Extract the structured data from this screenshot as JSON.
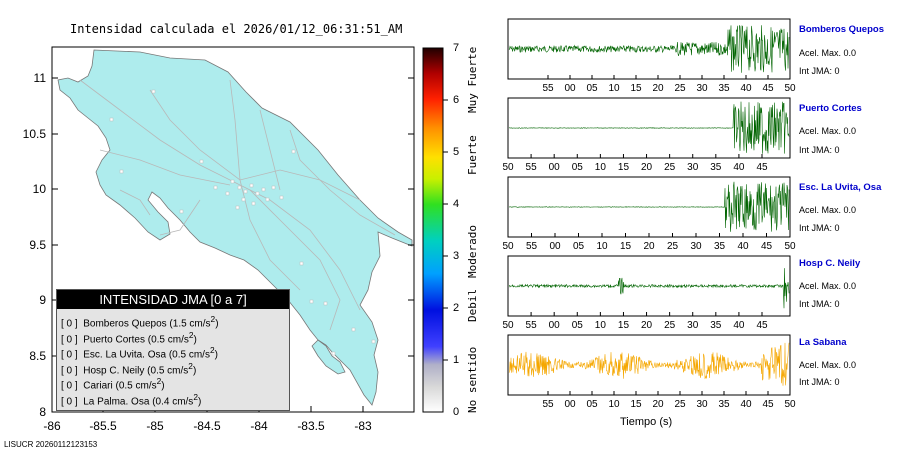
{
  "title": "Intensidad calculada el 2026/01/12_06:31:51_AM",
  "map": {
    "y_ticks": [
      "11",
      "10.5",
      "10",
      "9.5",
      "9",
      "8.5",
      "8"
    ],
    "x_ticks": [
      "-86",
      "-85.5",
      "-85",
      "-84.5",
      "-84",
      "-83.5",
      "-83"
    ]
  },
  "legend": {
    "header": "INTENSIDAD JMA [0 a 7]",
    "rows": [
      {
        "int": "[ 0 ]",
        "name": "Bomberos Quepos",
        "val": "(1.5 cm/s",
        "sup": "2",
        "end": ")"
      },
      {
        "int": "[ 0 ]",
        "name": "Puerto Cortes",
        "val": "(0.5 cm/s",
        "sup": "2",
        "end": ")"
      },
      {
        "int": "[ 0 ]",
        "name": "Esc. La Uvita. Osa",
        "val": "(0.5 cm/s",
        "sup": "2",
        "end": ")"
      },
      {
        "int": "[ 0 ]",
        "name": "Hosp C. Neily",
        "val": "(0.5 cm/s",
        "sup": "2",
        "end": ")"
      },
      {
        "int": "[ 0 ]",
        "name": "Cariari",
        "val": "(0.5 cm/s",
        "sup": "2",
        "end": ")"
      },
      {
        "int": "[ 0 ]",
        "name": "La Palma. Osa",
        "val": "(0.4 cm/s",
        "sup": "2",
        "end": ")"
      }
    ]
  },
  "colorbar": {
    "numbers": [
      "7",
      "6",
      "5",
      "4",
      "3",
      "2",
      "1",
      "0"
    ],
    "labels": [
      "Muy Fuerte",
      "Fuerte",
      "Moderado",
      "Debil",
      "No sentido"
    ]
  },
  "footer": "LISUCR 20260112123153",
  "panels": [
    {
      "name": "Bomberos Quepos",
      "acel": "Acel. Max. 0.0",
      "jma": "Int JMA: 0",
      "color": "#006400",
      "ticks": [
        "55",
        "00",
        "05",
        "10",
        "15",
        "20",
        "25",
        "30",
        "35",
        "40",
        "45",
        "50"
      ]
    },
    {
      "name": "Puerto Cortes",
      "acel": "Acel. Max. 0.0",
      "jma": "Int JMA: 0",
      "color": "#006400",
      "ticks": [
        "50",
        "55",
        "00",
        "05",
        "10",
        "15",
        "20",
        "25",
        "30",
        "35",
        "40",
        "45"
      ]
    },
    {
      "name": "Esc. La Uvita, Osa",
      "acel": "Acel. Max. 0.0",
      "jma": "Int JMA: 0",
      "color": "#006400",
      "ticks": [
        "50",
        "55",
        "00",
        "05",
        "10",
        "15",
        "20",
        "25",
        "30",
        "35",
        "40",
        "45",
        "50"
      ]
    },
    {
      "name": "Hosp C. Neily",
      "acel": "Acel. Max. 0.0",
      "jma": "Int JMA: 0",
      "color": "#006400",
      "ticks": [
        "50",
        "55",
        "00",
        "05",
        "10",
        "15",
        "20",
        "25",
        "30",
        "35",
        "40",
        "45"
      ]
    },
    {
      "name": "La Sabana",
      "acel": "Acel. Max. 0.0",
      "jma": "Int JMA: 0",
      "color": "#f5a700",
      "ticks": [
        "55",
        "00",
        "05",
        "10",
        "15",
        "20",
        "25",
        "30",
        "35",
        "40",
        "45",
        "50"
      ]
    }
  ],
  "xlabel": "Tiempo (s)"
}
